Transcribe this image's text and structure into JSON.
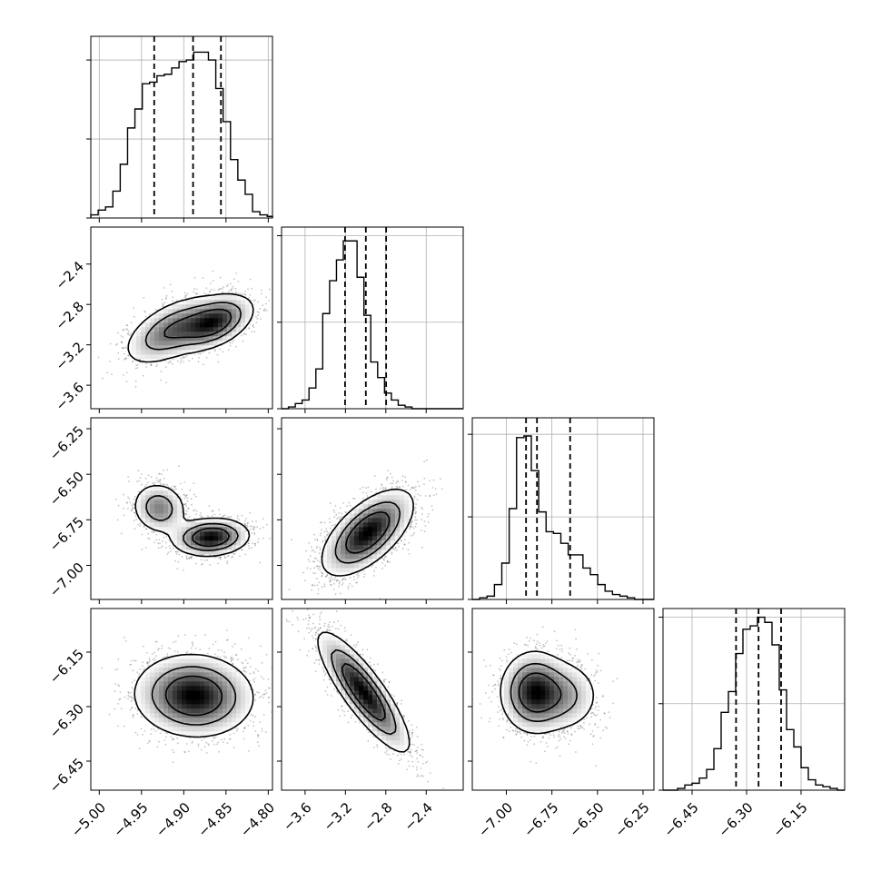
{
  "figure": {
    "type": "corner_plot",
    "n_params": 4
  },
  "colors": {
    "hist_line": "#000000",
    "quantile_line": "#000000",
    "grid": "#b0b0b0",
    "points": "#555555"
  },
  "chart_data": {
    "type": "corner",
    "quantiles": [
      0.16,
      0.5,
      0.84
    ],
    "params": [
      {
        "index": 0,
        "range": [
          -5.01,
          -4.795
        ],
        "ticks": [
          -5.0,
          -4.95,
          -4.9,
          -4.85,
          -4.8
        ],
        "tick_labels": [
          "−5.00",
          "−4.95",
          "−4.90",
          "−4.85",
          "−4.80"
        ],
        "quantile_values": [
          -4.935,
          -4.889,
          -4.856
        ],
        "hist_edges": [
          -5.01,
          -5.0013,
          -4.9926,
          -4.9839,
          -4.9752,
          -4.9665,
          -4.9578,
          -4.9491,
          -4.9404,
          -4.9317,
          -4.923,
          -4.9143,
          -4.9056,
          -4.8969,
          -4.8882,
          -4.8795,
          -4.8708,
          -4.8621,
          -4.8534,
          -4.8447,
          -4.836,
          -4.8273,
          -4.8186,
          -4.8099,
          -4.8012,
          -4.795
        ],
        "hist_counts": [
          0.02,
          0.05,
          0.07,
          0.17,
          0.34,
          0.57,
          0.69,
          0.85,
          0.86,
          0.9,
          0.91,
          0.95,
          0.99,
          1.0,
          1.05,
          1.05,
          1.0,
          0.82,
          0.61,
          0.37,
          0.24,
          0.15,
          0.04,
          0.02,
          0.01
        ],
        "hist_ymax": 1.15
      },
      {
        "index": 1,
        "range": [
          -3.833,
          -2.0333
        ],
        "ticks": [
          -3.6,
          -3.2,
          -2.8,
          -2.4
        ],
        "tick_labels": [
          "−3.6",
          "−3.2",
          "−2.8",
          "−2.4"
        ],
        "quantile_values": [
          -3.204,
          -2.998,
          -2.797
        ],
        "hist_edges": [
          -3.833,
          -3.765,
          -3.697,
          -3.629,
          -3.561,
          -3.493,
          -3.425,
          -3.357,
          -3.289,
          -3.221,
          -3.153,
          -3.085,
          -3.017,
          -2.949,
          -2.881,
          -2.813,
          -2.745,
          -2.677,
          -2.609,
          -2.541,
          -2.473,
          -2.405,
          -2.337,
          -2.269,
          -2.201,
          -2.133,
          -2.0333
        ],
        "hist_counts": [
          0.0,
          0.01,
          0.03,
          0.05,
          0.12,
          0.23,
          0.55,
          0.74,
          0.86,
          0.97,
          0.97,
          0.76,
          0.54,
          0.27,
          0.18,
          0.09,
          0.05,
          0.02,
          0.01,
          0.0,
          0.0,
          0.0,
          0.0,
          0.0,
          0.0,
          0.0
        ],
        "hist_ymax": 1.05
      },
      {
        "index": 2,
        "range": [
          -7.187,
          -6.19
        ],
        "ticks": [
          -7.0,
          -6.75,
          -6.5,
          -6.25
        ],
        "tick_labels": [
          "−7.00",
          "−6.75",
          "−6.50",
          "−6.25"
        ],
        "quantile_values": [
          -6.892,
          -6.832,
          -6.65
        ],
        "hist_edges": [
          -7.187,
          -7.1465,
          -7.106,
          -7.0655,
          -7.025,
          -6.9845,
          -6.944,
          -6.9035,
          -6.863,
          -6.8225,
          -6.782,
          -6.7415,
          -6.701,
          -6.6605,
          -6.62,
          -6.5795,
          -6.539,
          -6.4985,
          -6.458,
          -6.4175,
          -6.377,
          -6.3365,
          -6.296,
          -6.2555,
          -6.215,
          -6.19
        ],
        "hist_counts": [
          0.0,
          0.01,
          0.02,
          0.09,
          0.22,
          0.55,
          0.98,
          0.99,
          0.78,
          0.53,
          0.41,
          0.4,
          0.34,
          0.27,
          0.27,
          0.19,
          0.15,
          0.09,
          0.05,
          0.03,
          0.02,
          0.01,
          0.0,
          0.0,
          0.0
        ],
        "hist_ymax": 1.1
      },
      {
        "index": 3,
        "range": [
          -6.53,
          -6.03
        ],
        "ticks": [
          -6.45,
          -6.3,
          -6.15
        ],
        "tick_labels": [
          "−6.45",
          "−6.30",
          "−6.15"
        ],
        "quantile_values": [
          -6.329,
          -6.267,
          -6.205
        ],
        "hist_edges": [
          -6.53,
          -6.51,
          -6.49,
          -6.47,
          -6.45,
          -6.43,
          -6.41,
          -6.39,
          -6.37,
          -6.35,
          -6.33,
          -6.31,
          -6.29,
          -6.27,
          -6.25,
          -6.23,
          -6.21,
          -6.19,
          -6.17,
          -6.15,
          -6.13,
          -6.11,
          -6.09,
          -6.07,
          -6.05,
          -6.03
        ],
        "hist_counts": [
          0.0,
          0.0,
          0.01,
          0.03,
          0.04,
          0.07,
          0.12,
          0.24,
          0.45,
          0.57,
          0.79,
          0.93,
          0.95,
          1.0,
          0.97,
          0.84,
          0.58,
          0.35,
          0.25,
          0.13,
          0.06,
          0.03,
          0.02,
          0.01,
          0.0
        ],
        "hist_ymax": 1.05
      }
    ],
    "pairs": [
      {
        "x_param": 0,
        "y_param": 1,
        "peaks": [
          {
            "mx": -4.864,
            "my": -2.978,
            "sx": 0.023,
            "sy": 0.135,
            "rho": 0.45,
            "w": 1.0
          },
          {
            "mx": -4.915,
            "my": -3.06,
            "sx": 0.028,
            "sy": 0.17,
            "rho": 0.55,
            "w": 0.7
          }
        ]
      },
      {
        "x_param": 0,
        "y_param": 2,
        "peaks": [
          {
            "mx": -4.868,
            "my": -6.845,
            "sx": 0.022,
            "sy": 0.05,
            "rho": 0.1,
            "w": 1.0
          },
          {
            "mx": -4.929,
            "my": -6.685,
            "sx": 0.016,
            "sy": 0.07,
            "rho": -0.1,
            "w": 0.55
          }
        ]
      },
      {
        "x_param": 0,
        "y_param": 3,
        "peaks": [
          {
            "mx": -4.888,
            "my": -6.27,
            "sx": 0.034,
            "sy": 0.055,
            "rho": -0.05,
            "w": 1.0
          }
        ]
      },
      {
        "x_param": 1,
        "y_param": 2,
        "peaks": [
          {
            "mx": -2.98,
            "my": -6.82,
            "sx": 0.22,
            "sy": 0.115,
            "rho": 0.62,
            "w": 1.0
          }
        ]
      },
      {
        "x_param": 1,
        "y_param": 3,
        "peaks": [
          {
            "mx": -3.02,
            "my": -6.26,
            "sx": 0.22,
            "sy": 0.08,
            "rho": -0.85,
            "w": 1.0
          }
        ]
      },
      {
        "x_param": 2,
        "y_param": 3,
        "peaks": [
          {
            "mx": -6.85,
            "my": -6.26,
            "sx": 0.09,
            "sy": 0.055,
            "rho": 0.0,
            "w": 1.0
          },
          {
            "mx": -6.68,
            "my": -6.27,
            "sx": 0.1,
            "sy": 0.05,
            "rho": 0.0,
            "w": 0.45
          }
        ]
      }
    ]
  }
}
